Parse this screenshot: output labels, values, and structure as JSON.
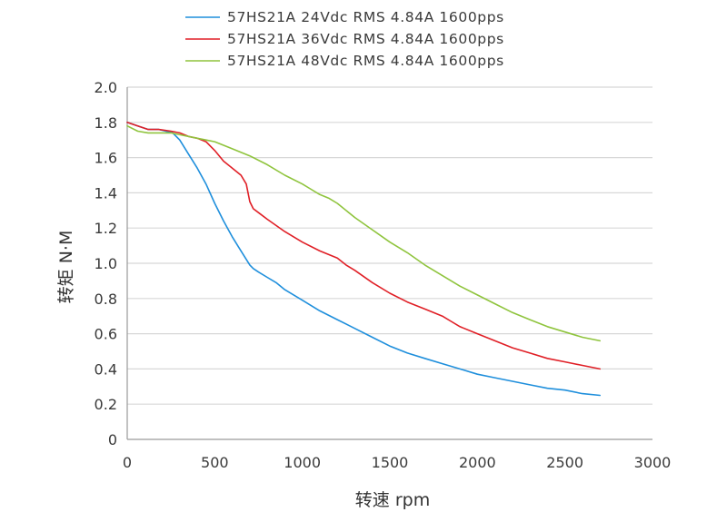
{
  "chart_data": {
    "type": "line",
    "xlabel": "转速 rpm",
    "ylabel": "转矩 N·M",
    "xlim": [
      0,
      3000
    ],
    "ylim": [
      0,
      2.0
    ],
    "xticks": [
      "0",
      "500",
      "1000",
      "1500",
      "2000",
      "2500",
      "3000"
    ],
    "yticks": [
      "0",
      "0.2",
      "0.4",
      "0.6",
      "0.8",
      "1.0",
      "1.2",
      "1.4",
      "1.6",
      "1.8",
      "2.0"
    ],
    "grid": "horizontal",
    "legend_position": "top",
    "series": [
      {
        "name": "57HS21A  24Vdc  RMS  4.84A  1600pps",
        "color": "#1f8fdc",
        "x": [
          0,
          60,
          120,
          180,
          220,
          260,
          300,
          350,
          400,
          450,
          500,
          550,
          600,
          650,
          700,
          720,
          750,
          800,
          850,
          900,
          1000,
          1100,
          1200,
          1300,
          1400,
          1500,
          1600,
          1700,
          1800,
          1900,
          2000,
          2100,
          2200,
          2300,
          2400,
          2500,
          2600,
          2700
        ],
        "y": [
          1.8,
          1.78,
          1.76,
          1.76,
          1.75,
          1.74,
          1.7,
          1.62,
          1.54,
          1.45,
          1.34,
          1.24,
          1.15,
          1.07,
          0.99,
          0.97,
          0.95,
          0.92,
          0.89,
          0.85,
          0.79,
          0.73,
          0.68,
          0.63,
          0.58,
          0.53,
          0.49,
          0.46,
          0.43,
          0.4,
          0.37,
          0.35,
          0.33,
          0.31,
          0.29,
          0.28,
          0.26,
          0.25
        ]
      },
      {
        "name": "57HS21A  36Vdc  RMS  4.84A  1600pps",
        "color": "#e01f26",
        "x": [
          0,
          60,
          120,
          180,
          250,
          300,
          350,
          400,
          450,
          500,
          550,
          600,
          650,
          680,
          700,
          720,
          760,
          800,
          900,
          1000,
          1100,
          1200,
          1250,
          1300,
          1400,
          1500,
          1600,
          1700,
          1800,
          1850,
          1900,
          2000,
          2100,
          2200,
          2300,
          2400,
          2500,
          2600,
          2700
        ],
        "y": [
          1.8,
          1.78,
          1.76,
          1.76,
          1.75,
          1.74,
          1.72,
          1.71,
          1.69,
          1.64,
          1.58,
          1.54,
          1.5,
          1.45,
          1.35,
          1.31,
          1.28,
          1.25,
          1.18,
          1.12,
          1.07,
          1.03,
          0.99,
          0.96,
          0.89,
          0.83,
          0.78,
          0.74,
          0.7,
          0.67,
          0.64,
          0.6,
          0.56,
          0.52,
          0.49,
          0.46,
          0.44,
          0.42,
          0.4
        ]
      },
      {
        "name": "57HS21A  48Vdc  RMS  4.84A  1600pps",
        "color": "#8fc43d",
        "x": [
          0,
          60,
          120,
          180,
          250,
          300,
          350,
          400,
          450,
          500,
          600,
          700,
          800,
          900,
          1000,
          1050,
          1100,
          1150,
          1200,
          1300,
          1400,
          1500,
          1600,
          1700,
          1800,
          1900,
          2000,
          2100,
          2200,
          2300,
          2400,
          2500,
          2600,
          2700
        ],
        "y": [
          1.78,
          1.75,
          1.74,
          1.74,
          1.74,
          1.73,
          1.72,
          1.71,
          1.7,
          1.69,
          1.65,
          1.61,
          1.56,
          1.5,
          1.45,
          1.42,
          1.39,
          1.37,
          1.34,
          1.26,
          1.19,
          1.12,
          1.06,
          0.99,
          0.93,
          0.87,
          0.82,
          0.77,
          0.72,
          0.68,
          0.64,
          0.61,
          0.58,
          0.56
        ]
      }
    ]
  }
}
